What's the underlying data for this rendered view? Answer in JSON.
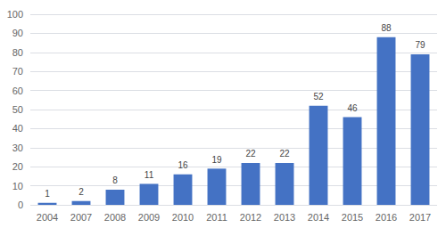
{
  "chart_data": {
    "type": "bar",
    "categories": [
      "2004",
      "2007",
      "2008",
      "2009",
      "2010",
      "2011",
      "2012",
      "2013",
      "2014",
      "2015",
      "2016",
      "2017"
    ],
    "values": [
      1,
      2,
      8,
      11,
      16,
      19,
      22,
      22,
      52,
      46,
      88,
      79
    ],
    "color": "#4472C4",
    "ylim": [
      0,
      100
    ],
    "yticks": [
      0,
      10,
      20,
      30,
      40,
      50,
      60,
      70,
      80,
      90,
      100
    ],
    "grid": true,
    "data_labels": true
  }
}
